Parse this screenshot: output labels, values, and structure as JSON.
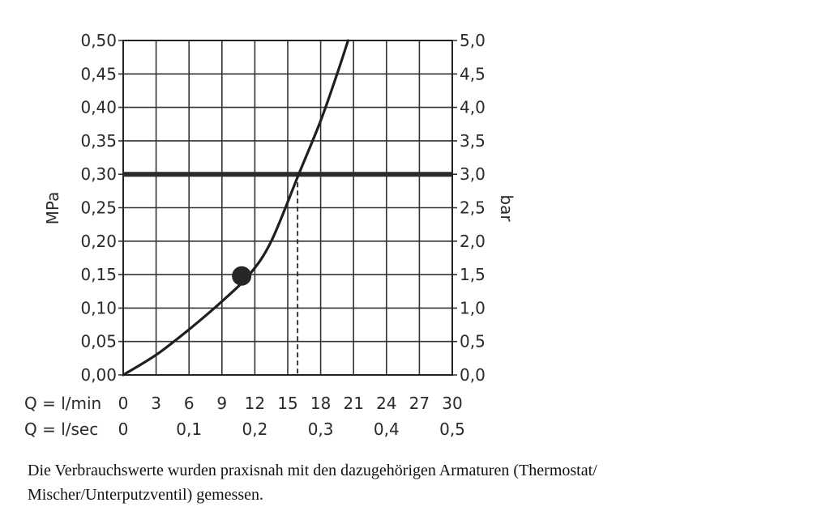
{
  "chart_data": {
    "type": "line",
    "left_axis": {
      "label": "MPa",
      "range": [
        0,
        0.5
      ],
      "ticks": [
        "0,00",
        "0,05",
        "0,10",
        "0,15",
        "0,20",
        "0,25",
        "0,30",
        "0,35",
        "0,40",
        "0,45",
        "0,50"
      ]
    },
    "right_axis": {
      "label": "bar",
      "range": [
        0,
        5
      ],
      "ticks": [
        "0,0",
        "0,5",
        "1,0",
        "1,5",
        "2,0",
        "2,5",
        "3,0",
        "3,5",
        "4,0",
        "4,5",
        "5,0"
      ]
    },
    "x_axis_lmin": {
      "label": "Q = l/min",
      "range": [
        0,
        30
      ],
      "ticks": [
        "0",
        "3",
        "6",
        "9",
        "12",
        "15",
        "18",
        "21",
        "24",
        "27",
        "30"
      ]
    },
    "x_axis_lsec": {
      "label": "Q = l/sec",
      "range": [
        0,
        0.5
      ],
      "ticks": [
        "0",
        "0,1",
        "0,2",
        "0,3",
        "0,4",
        "0,5"
      ]
    },
    "grid": true,
    "series": [
      {
        "x": [
          0,
          3,
          6,
          9,
          11.5,
          13.5,
          16,
          18,
          19.5,
          20.5
        ],
        "y": [
          0,
          0.03,
          0.068,
          0.11,
          0.15,
          0.2,
          0.3,
          0.38,
          0.45,
          0.5
        ]
      }
    ],
    "reference_line": {
      "y": 0.3
    },
    "marker_point": {
      "x": 10.8,
      "y": 0.148
    },
    "dashed_drop": {
      "x": 15.9,
      "y_from": 0.3,
      "y_to": 0
    }
  },
  "caption": {
    "line1": "Die Verbrauchswerte wurden praxisnah mit den dazugehörigen Armaturen (Thermostat/",
    "line2": "Mischer/Unterputzventil) gemessen."
  }
}
